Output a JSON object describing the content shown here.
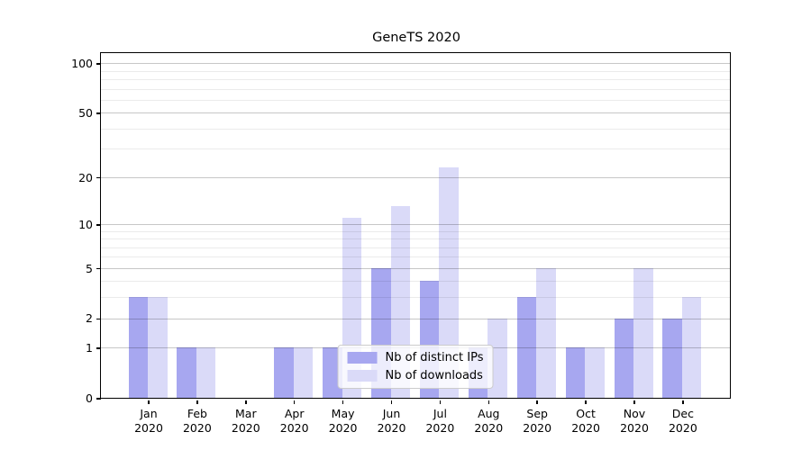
{
  "title": "GeneTS 2020",
  "colors": {
    "background": "#ffffff",
    "axis": "#000000",
    "bar_ips": "#a7a7f0",
    "bar_downloads": "#dadaf8",
    "grid_major": "rgba(0,0,0,0.22)",
    "grid_minor": "rgba(0,0,0,0.08)",
    "legend_border": "#cccccc",
    "legend_background": "rgba(255,255,255,0.8)"
  },
  "legend": {
    "position": "lower center",
    "items": [
      {
        "label": "Nb of distinct IPs",
        "color_key": "bar_ips"
      },
      {
        "label": "Nb of downloads",
        "color_key": "bar_downloads"
      }
    ]
  },
  "chart_data": {
    "type": "bar",
    "title": "GeneTS 2020",
    "categories": [
      "Jan 2020",
      "Feb 2020",
      "Mar 2020",
      "Apr 2020",
      "May 2020",
      "Jun 2020",
      "Jul 2020",
      "Aug 2020",
      "Sep 2020",
      "Oct 2020",
      "Nov 2020",
      "Dec 2020"
    ],
    "series": [
      {
        "key": "ips",
        "name": "Nb of distinct IPs",
        "color": "#a7a7f0",
        "values": [
          3,
          1,
          0,
          1,
          1,
          5,
          4,
          1,
          3,
          1,
          2,
          2
        ]
      },
      {
        "key": "downloads",
        "name": "Nb of downloads",
        "color": "#dadaf8",
        "values": [
          3,
          1,
          0,
          1,
          11,
          13,
          23,
          2,
          5,
          1,
          5,
          3
        ]
      }
    ],
    "xlabel": "",
    "ylabel": "",
    "y_scale": "log1p",
    "ylim": [
      0,
      115
    ],
    "y_major_ticks": [
      0,
      1,
      2,
      5,
      10,
      20,
      50,
      100
    ],
    "y_minor_ticks": [
      3,
      4,
      6,
      7,
      8,
      9,
      30,
      40,
      60,
      70,
      80,
      90
    ],
    "grid": true,
    "legend_position": "lower center"
  }
}
